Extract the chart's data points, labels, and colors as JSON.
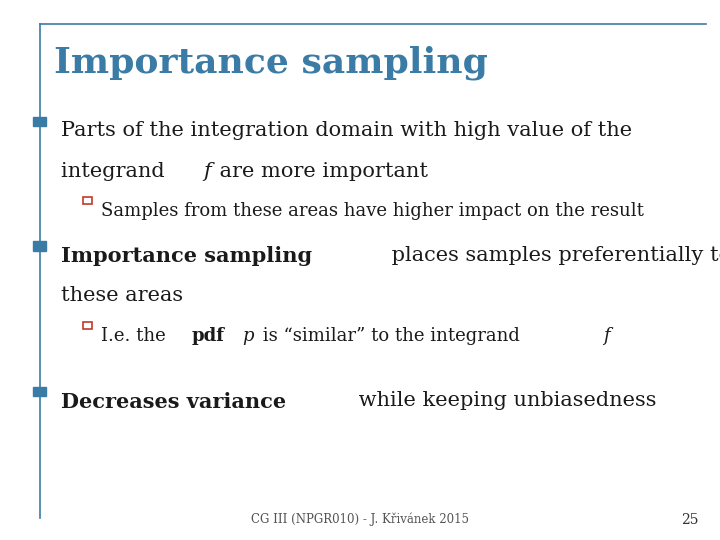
{
  "title": "Importance sampling",
  "title_color": "#3a7ca5",
  "title_fontsize": 26,
  "background_color": "#ffffff",
  "border_color": "#3a7ca5",
  "bullet_color": "#3a7ca5",
  "sub_bullet_color": "#c0392b",
  "footer": "CG III (NPGR010) - J. Křivánek 2015",
  "page_number": "25",
  "text_color": "#1a1a1a",
  "main_fontsize": 15,
  "sub_fontsize": 13
}
